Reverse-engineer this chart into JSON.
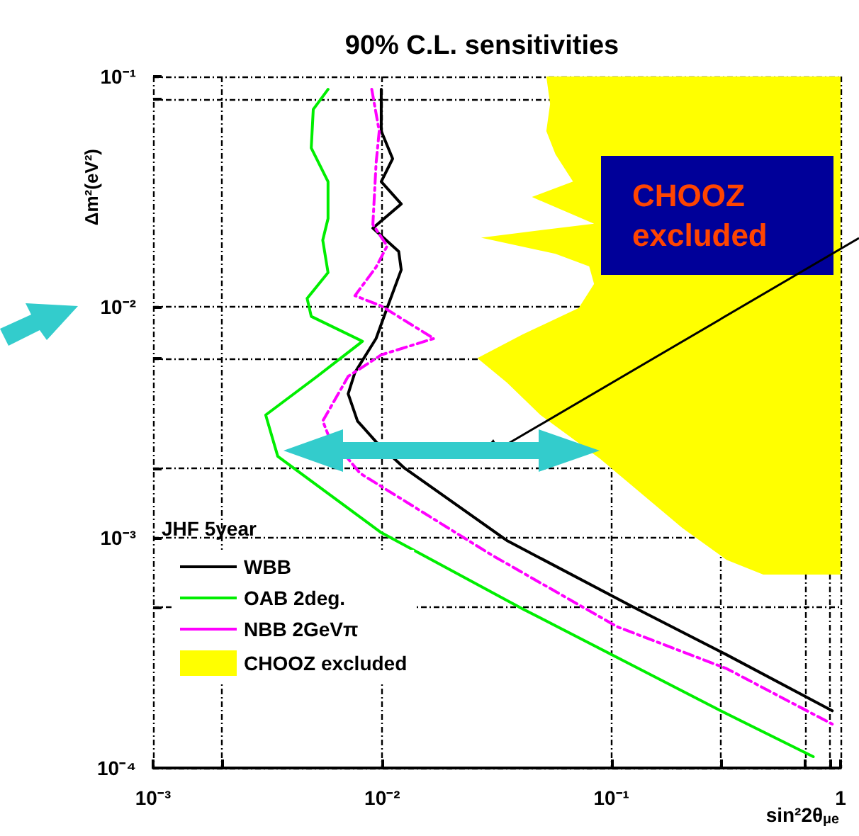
{
  "chart_data": {
    "type": "line",
    "title": "90% C.L. sensitivities",
    "xlabel": "sin²2θ$_{μe}$",
    "ylabel": "Δm²(eV²)",
    "legend_title": "JHF 5year",
    "annotations": [
      "CHOOZ excluded"
    ],
    "log": "xy",
    "grid": true,
    "legend": "bottom left",
    "marker": "none",
    "xlim": [
      0.001,
      1
    ],
    "ylim": [
      0.0001,
      0.1
    ],
    "xticks": [
      {
        "value": 0.001,
        "label": "10⁻³"
      },
      {
        "value": 0.002,
        "label": null
      },
      {
        "value": 0.01,
        "label": "10⁻²"
      },
      {
        "value": 0.1,
        "label": "10⁻¹"
      },
      {
        "value": 0.3,
        "label": null
      },
      {
        "value": 0.7,
        "label": null
      },
      {
        "value": 0.9,
        "label": null
      },
      {
        "value": 1,
        "label": "1"
      }
    ],
    "yticks": [
      {
        "value": 0.0001,
        "label": "10⁻⁴"
      },
      {
        "value": 0.0005,
        "label": null
      },
      {
        "value": 0.001,
        "label": "10⁻³"
      },
      {
        "value": 0.002,
        "label": null
      },
      {
        "value": 0.006,
        "label": null
      },
      {
        "value": 0.01,
        "label": "10⁻²"
      },
      {
        "value": 0.08,
        "label": null
      },
      {
        "value": 0.1,
        "label": "10⁻¹"
      }
    ],
    "series": [
      {
        "name": "WBB",
        "color": "#000000",
        "line_style": "solid",
        "x": [
          0.0099,
          0.0099,
          0.0111,
          0.0099,
          0.0121,
          0.0091,
          0.0118,
          0.0121,
          0.0105,
          0.0094,
          0.0076,
          0.0071,
          0.0078,
          0.0094,
          0.0125,
          0.035,
          0.124,
          0.318,
          0.92
        ],
        "values": [
          0.088,
          0.058,
          0.044,
          0.035,
          0.028,
          0.022,
          0.0174,
          0.0145,
          0.0099,
          0.0073,
          0.0052,
          0.0042,
          0.0032,
          0.0026,
          0.002,
          0.00097,
          0.0005,
          0.00031,
          0.000177
        ]
      },
      {
        "name": "OAB 2deg.",
        "color": "#00ee00",
        "line_style": "solid",
        "x": [
          0.0058,
          0.005,
          0.0049,
          0.0058,
          0.0058,
          0.0055,
          0.0058,
          0.0047,
          0.0049,
          0.0082,
          0.0052,
          0.0031,
          0.0035,
          0.0099,
          0.041,
          0.3,
          0.76
        ],
        "values": [
          0.088,
          0.072,
          0.049,
          0.035,
          0.0242,
          0.0195,
          0.0141,
          0.0109,
          0.0091,
          0.0071,
          0.005,
          0.0034,
          0.00225,
          0.00105,
          0.00049,
          0.000177,
          0.000112
        ]
      },
      {
        "name": "NBB 2GeVπ",
        "color": "#ff00ff",
        "line_style": "dashed",
        "x": [
          0.009,
          0.0097,
          0.0094,
          0.0091,
          0.0105,
          0.0094,
          0.0076,
          0.0099,
          0.0168,
          0.0099,
          0.0071,
          0.0055,
          0.0058,
          0.008,
          0.03,
          0.106,
          0.318,
          0.92
        ],
        "values": [
          0.088,
          0.058,
          0.042,
          0.0228,
          0.0184,
          0.0149,
          0.0112,
          0.0101,
          0.0073,
          0.0062,
          0.005,
          0.0032,
          0.0028,
          0.0019,
          0.00084,
          0.00041,
          0.00027,
          0.000155
        ]
      },
      {
        "name": "CHOOZ excluded",
        "type": "area",
        "color": "#ffff00",
        "x": [
          0.052,
          0.054,
          0.052,
          0.057,
          0.068,
          0.045,
          0.084,
          0.027,
          0.057,
          0.08,
          0.084,
          0.072,
          0.041,
          0.026,
          0.035,
          0.049,
          0.089,
          0.204,
          0.318,
          0.46,
          1,
          1
        ],
        "values": [
          0.1,
          0.076,
          0.058,
          0.046,
          0.035,
          0.03,
          0.023,
          0.02,
          0.017,
          0.015,
          0.0126,
          0.0099,
          0.0076,
          0.006,
          0.0047,
          0.0034,
          0.0022,
          0.0011,
          0.0008,
          0.00069,
          0.00069,
          0.1
        ]
      }
    ]
  }
}
